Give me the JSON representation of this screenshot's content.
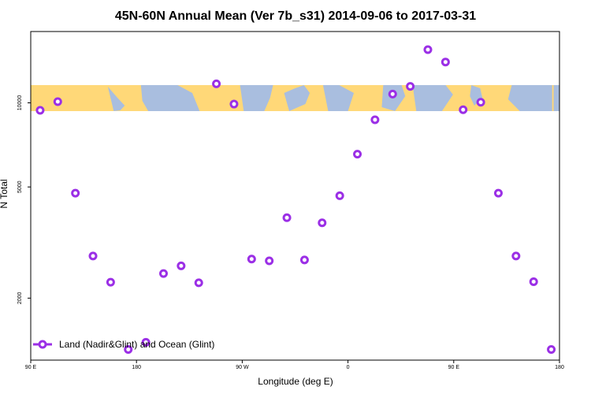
{
  "chart_data": {
    "type": "scatter",
    "title": "45N-60N Annual Mean (Ver 7b_s31)   2014-09-06 to 2017-03-31",
    "xlabel": "Longitude (deg E)",
    "ylabel": "N Total",
    "x_ticks": [
      {
        "value": 90,
        "label": "90 E"
      },
      {
        "value": 180,
        "label": "180"
      },
      {
        "value": 270,
        "label": "90 W"
      },
      {
        "value": 360,
        "label": "0"
      },
      {
        "value": 450,
        "label": "90 E"
      },
      {
        "value": 540,
        "label": "180"
      }
    ],
    "y_ticks": [
      2000,
      5000,
      10000
    ],
    "y_scale": "log",
    "xlim": [
      90,
      540
    ],
    "ylim": [
      1200,
      18000
    ],
    "map_band": {
      "color_land": "#ffd878",
      "color_ocean": "#a9bedf"
    },
    "series": [
      {
        "name": "Land (Nadir&Glint) and Ocean (Glint)",
        "color": "#9b2fe6",
        "points": [
          {
            "x": 98,
            "y": 9400
          },
          {
            "x": 113,
            "y": 10100
          },
          {
            "x": 128,
            "y": 4750
          },
          {
            "x": 143,
            "y": 2830
          },
          {
            "x": 158,
            "y": 2280
          },
          {
            "x": 173,
            "y": 1310
          },
          {
            "x": 188,
            "y": 1390
          },
          {
            "x": 203,
            "y": 2450
          },
          {
            "x": 218,
            "y": 2610
          },
          {
            "x": 233,
            "y": 2270
          },
          {
            "x": 248,
            "y": 11700
          },
          {
            "x": 263,
            "y": 9900
          },
          {
            "x": 278,
            "y": 2760
          },
          {
            "x": 293,
            "y": 2720
          },
          {
            "x": 308,
            "y": 3880
          },
          {
            "x": 323,
            "y": 2740
          },
          {
            "x": 338,
            "y": 3720
          },
          {
            "x": 353,
            "y": 4650
          },
          {
            "x": 368,
            "y": 6550
          },
          {
            "x": 383,
            "y": 8700
          },
          {
            "x": 398,
            "y": 10750
          },
          {
            "x": 413,
            "y": 11450
          },
          {
            "x": 428,
            "y": 15500
          },
          {
            "x": 443,
            "y": 14000
          },
          {
            "x": 458,
            "y": 9450
          },
          {
            "x": 473,
            "y": 10050
          },
          {
            "x": 488,
            "y": 4750
          },
          {
            "x": 503,
            "y": 2830
          },
          {
            "x": 518,
            "y": 2290
          },
          {
            "x": 533,
            "y": 1310
          }
        ]
      }
    ],
    "legend_position": "bottom-left"
  }
}
